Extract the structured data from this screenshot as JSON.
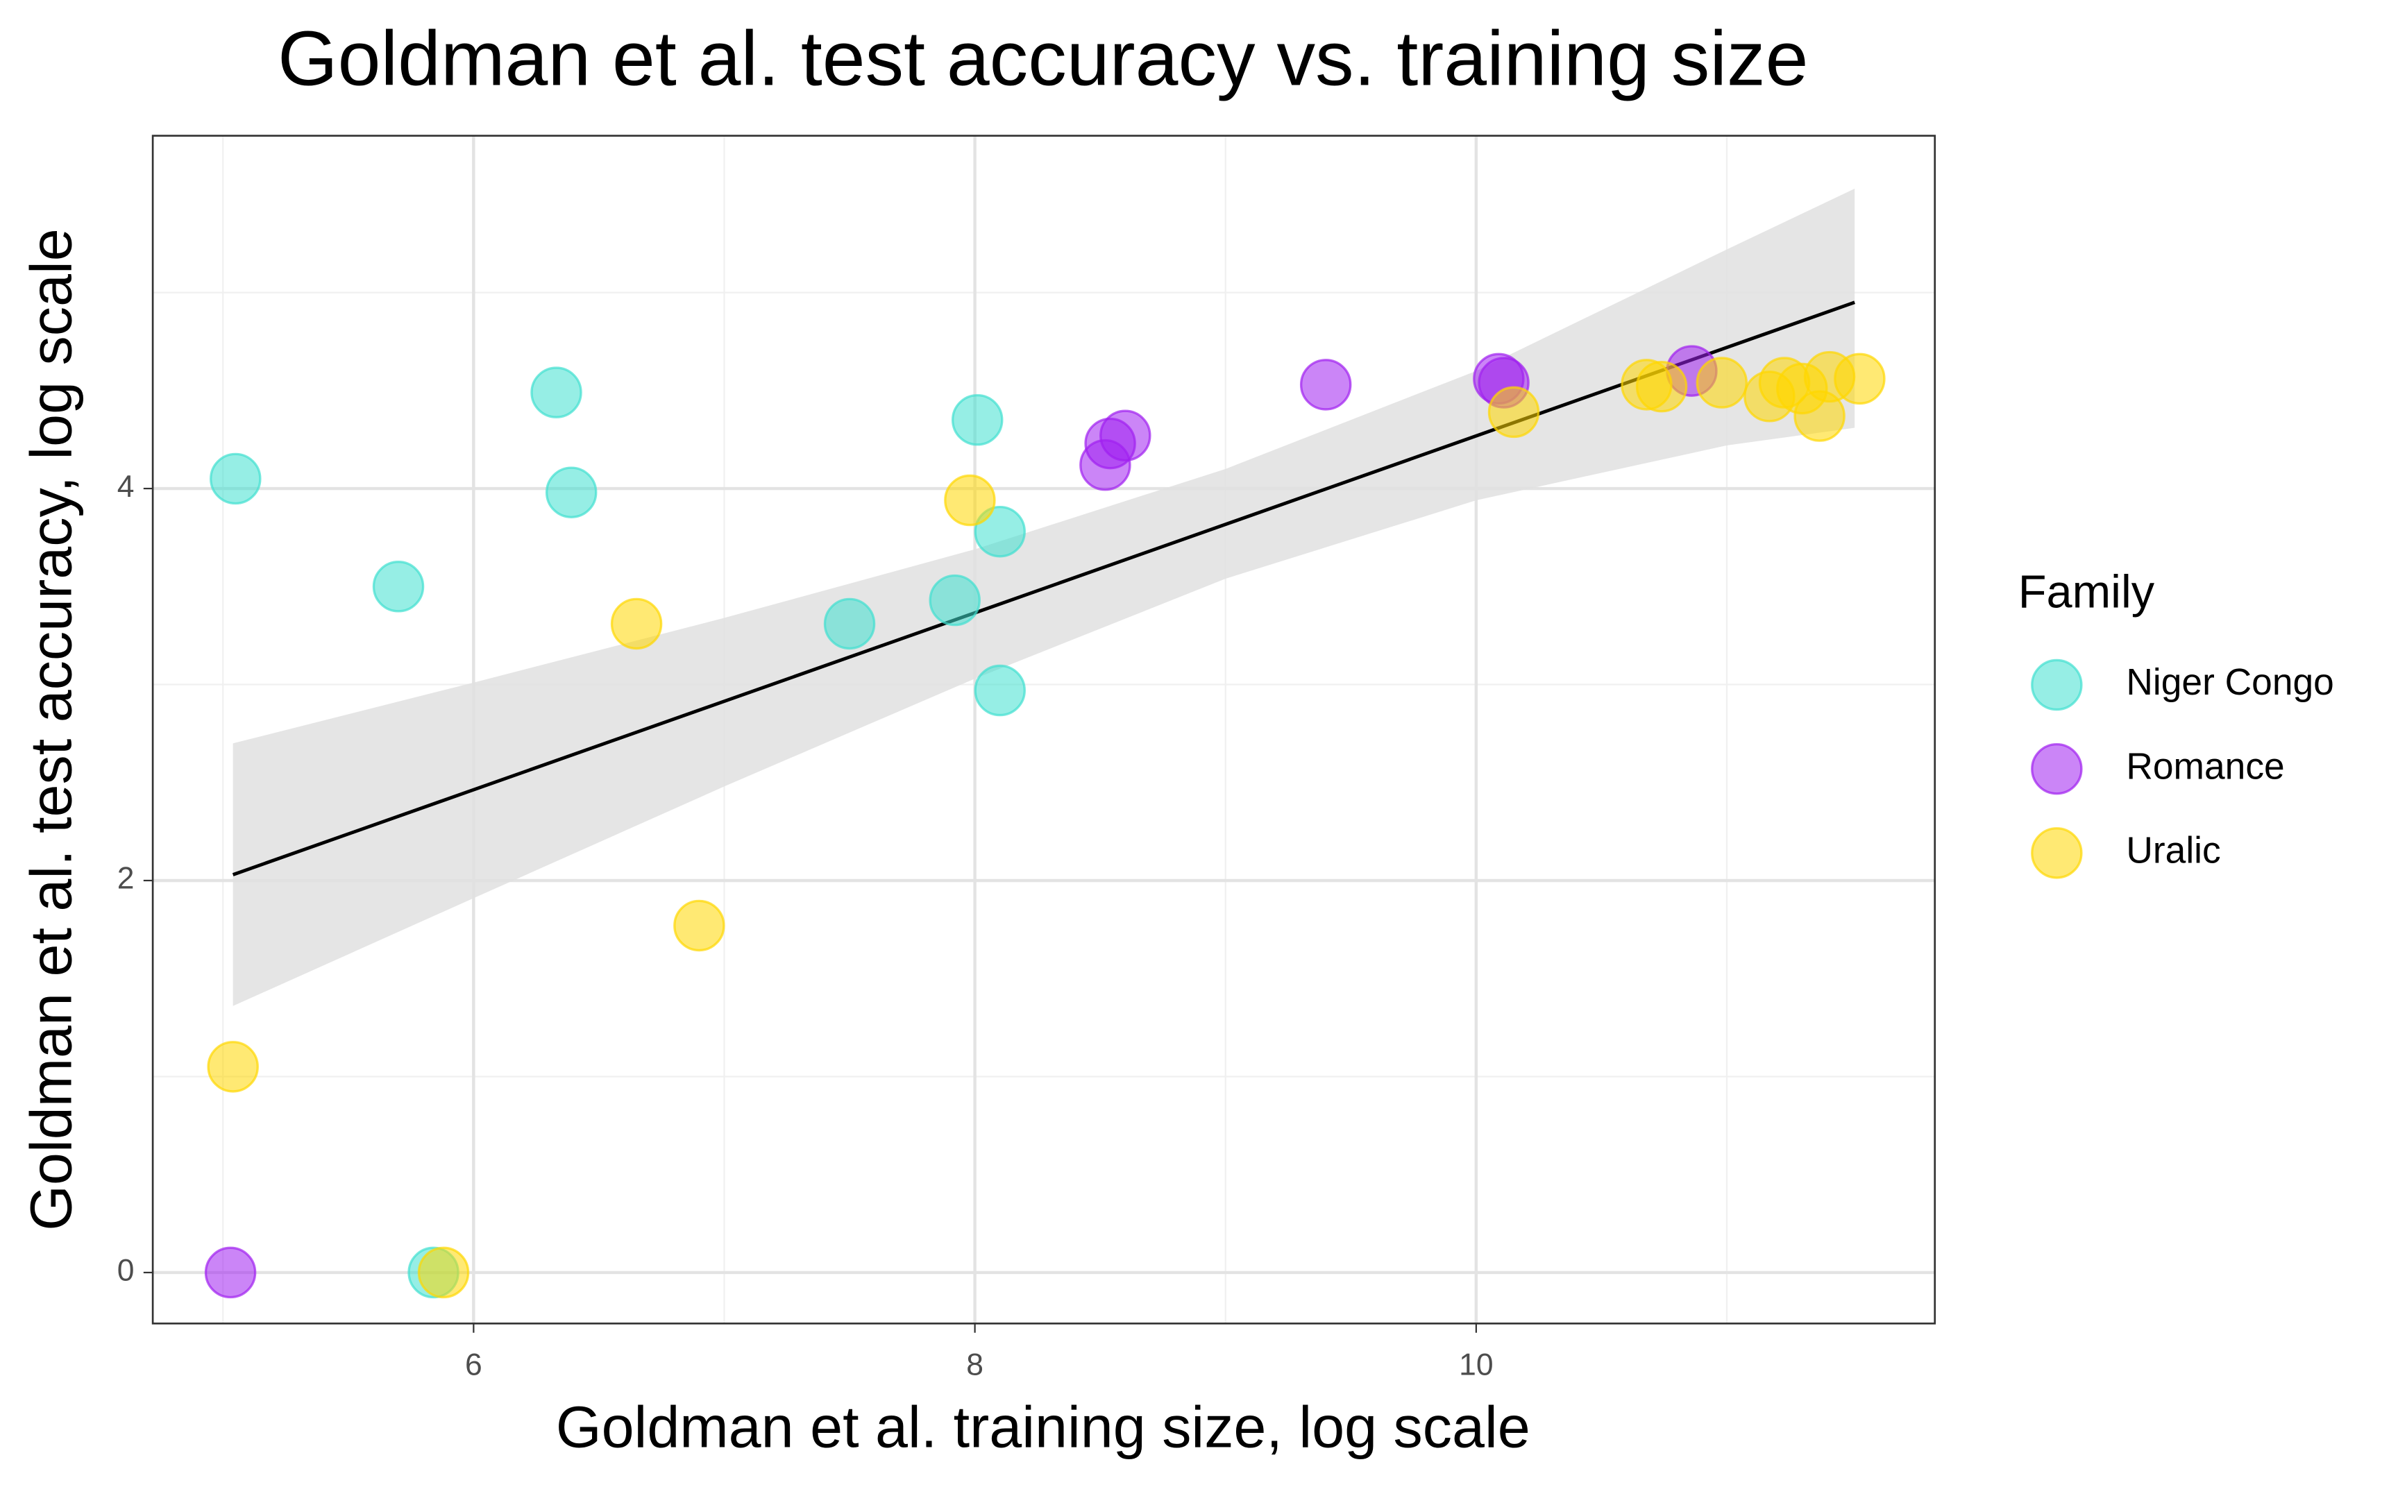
{
  "chart_data": {
    "type": "scatter",
    "title": "Goldman et al. test accuracy vs. training size",
    "x_label": "Goldman et al. training size, log scale",
    "y_label": "Goldman et al. test accuracy, log scale",
    "legend_title": "Family",
    "legend_position": "right",
    "grid": true,
    "xlim": [
      4.72,
      11.83
    ],
    "ylim": [
      -0.26,
      5.8
    ],
    "xticks": [
      6,
      8,
      10
    ],
    "yticks": [
      0,
      2,
      4
    ],
    "xminor": [
      5,
      7,
      9,
      11
    ],
    "yminor": [
      1,
      3,
      5
    ],
    "series": [
      {
        "name": "Niger Congo",
        "color": "#40E0D0",
        "x": [
          5.05,
          6.33,
          6.39,
          5.7,
          8.01,
          8.1,
          7.92,
          7.5,
          8.1,
          5.84
        ],
        "values": [
          4.05,
          4.49,
          3.98,
          3.5,
          4.35,
          3.78,
          3.43,
          3.31,
          2.97,
          0
        ]
      },
      {
        "name": "Romance",
        "color": "#A020F0",
        "x": [
          5.03,
          8.52,
          8.54,
          8.6,
          9.4,
          10.09,
          10.11,
          10.86
        ],
        "values": [
          0,
          4.12,
          4.23,
          4.27,
          4.53,
          4.56,
          4.54,
          4.6
        ]
      },
      {
        "name": "Uralic",
        "color": "#FFD700",
        "x": [
          5.04,
          6.9,
          6.65,
          7.98,
          5.88,
          10.15,
          10.68,
          10.74,
          10.98,
          11.17,
          11.23,
          11.3,
          11.37,
          11.41,
          11.53
        ],
        "values": [
          1.05,
          1.77,
          3.31,
          3.94,
          0,
          4.39,
          4.53,
          4.52,
          4.54,
          4.47,
          4.54,
          4.51,
          4.37,
          4.57,
          4.56
        ]
      }
    ],
    "fit": {
      "color": "#000000",
      "x": [
        5.04,
        11.51
      ],
      "values": [
        2.03,
        4.95
      ]
    },
    "band": {
      "color": "#e0e0e0",
      "x": [
        5.04,
        6,
        7,
        8,
        9,
        10,
        11,
        11.51
      ],
      "upper": [
        2.7,
        3.01,
        3.34,
        3.69,
        4.1,
        4.6,
        5.22,
        5.53
      ],
      "lower": [
        1.36,
        1.91,
        2.48,
        3.03,
        3.54,
        3.94,
        4.22,
        4.31
      ]
    }
  }
}
